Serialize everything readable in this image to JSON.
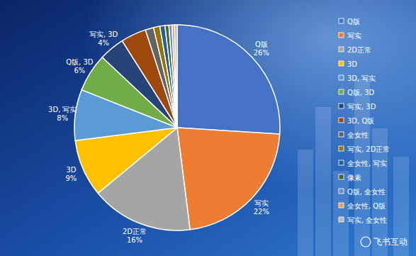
{
  "chart_data": {
    "type": "pie",
    "categories": [
      "Q版",
      "写实",
      "2D正常",
      "3D",
      "3D, 写实",
      "Q版, 3D",
      "写实, 3D",
      "3D, Q版",
      "全女性",
      "写实, 2D正常",
      "全女性, 写实",
      "像素",
      "Q版, 全女性",
      "全女性, Q版",
      "写实, 全女性"
    ],
    "values": [
      26,
      22,
      16,
      9,
      8,
      6,
      4,
      4,
      1.3,
      1,
      0.8,
      0.6,
      0.5,
      0.4,
      0.4
    ],
    "value_labels": [
      "26%",
      "22%",
      "16%",
      "9%",
      "8%",
      "6%",
      "4%",
      null,
      null,
      null,
      null,
      null,
      null,
      null,
      null
    ],
    "colors": [
      "#4472c4",
      "#ed7d31",
      "#a5a5a5",
      "#ffc000",
      "#5b9bd5",
      "#70ad47",
      "#264478",
      "#9e480e",
      "#636363",
      "#997300",
      "#255e91",
      "#43682b",
      "#698ed0",
      "#f1975a",
      "#b7b7b7"
    ],
    "data_labels": true,
    "legend": "right",
    "annotation": "飞书互动"
  }
}
